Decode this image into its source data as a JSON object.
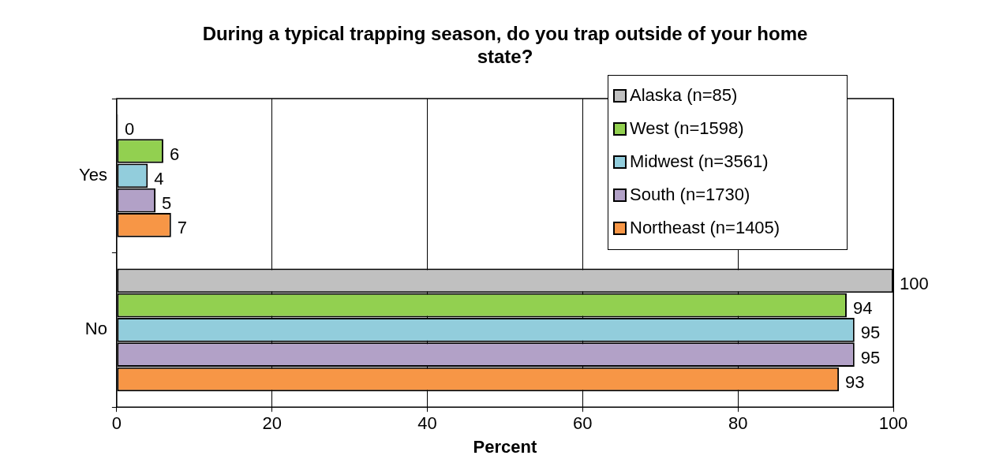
{
  "chart_data": {
    "type": "bar",
    "orientation": "horizontal",
    "title": "During a typical trapping season, do you trap outside of your home state?",
    "xlabel": "Percent",
    "categories": [
      "Yes",
      "No"
    ],
    "series": [
      {
        "name": "Alaska (n=85)",
        "color": "#c0c0c0",
        "values": [
          0,
          100
        ]
      },
      {
        "name": "West (n=1598)",
        "color": "#92d050",
        "values": [
          6,
          94
        ]
      },
      {
        "name": "Midwest (n=3561)",
        "color": "#92cddc",
        "values": [
          4,
          95
        ]
      },
      {
        "name": "South (n=1730)",
        "color": "#b2a1c7",
        "values": [
          5,
          95
        ]
      },
      {
        "name": "Northeast (n=1405)",
        "color": "#f79646",
        "values": [
          7,
          93
        ]
      }
    ],
    "xlim": [
      0,
      100
    ],
    "xticks": [
      0,
      20,
      40,
      60,
      80,
      100
    ],
    "grid": "x",
    "legend": "top right",
    "data_labels": true
  }
}
